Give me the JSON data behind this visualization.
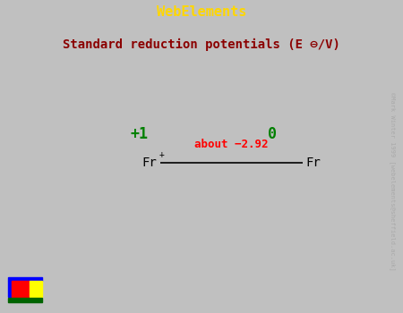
{
  "title_bar_text": "WebElements",
  "title_bar_color": "#8B0000",
  "title_bar_text_color": "#FFD700",
  "subtitle_text": "Standard reduction potentials (E ⊖/V)",
  "subtitle_bg_color": "#FFFFC8",
  "subtitle_text_color": "#8B0000",
  "main_bg_color": "#FFFFFF",
  "outer_border_color": "#C0C0C0",
  "inner_border_color": "#8B0000",
  "ox_state_left": "+1",
  "ox_state_right": "0",
  "ox_state_color": "#008000",
  "potential_text": "about −2.92",
  "potential_color": "#FF0000",
  "watermark_text": "©Mark Winter 1999 [webelements@sheffield.ac.uk]",
  "watermark_color": "#AAAAAA",
  "fig_width": 4.5,
  "fig_height": 3.5,
  "dpi": 100
}
